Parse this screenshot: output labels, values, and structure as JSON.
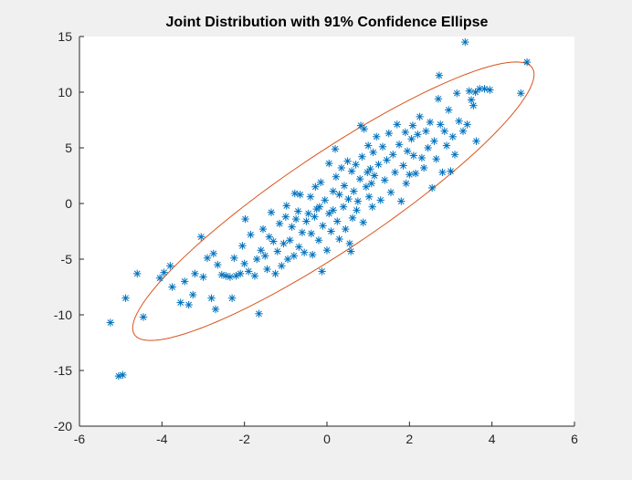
{
  "chart_data": {
    "type": "scatter",
    "title": "Joint Distribution with 91% Confidence Ellipse",
    "xlabel": "",
    "ylabel": "",
    "xlim": [
      -6,
      6
    ],
    "ylim": [
      -20,
      15
    ],
    "xticks": [
      "-6",
      "-4",
      "-2",
      "0",
      "2",
      "4",
      "6"
    ],
    "yticks": [
      "15",
      "10",
      "5",
      "0",
      "-5",
      "-10",
      "-15",
      "-20"
    ],
    "grid": false,
    "legend": "none",
    "colors": {
      "points": "#0072BD",
      "ellipse": "#D95319",
      "background": "#ffffff",
      "figure": "#f0f0f0"
    },
    "marker": "asterisk",
    "series": [
      {
        "points": [
          [
            -5.25,
            -10.7
          ],
          [
            -5.05,
            -15.5
          ],
          [
            -4.95,
            -15.4
          ],
          [
            -4.88,
            -8.5
          ],
          [
            -4.6,
            -6.3
          ],
          [
            -4.45,
            -10.2
          ],
          [
            -4.05,
            -6.7
          ],
          [
            -3.95,
            -6.2
          ],
          [
            -3.8,
            -5.6
          ],
          [
            -3.75,
            -7.5
          ],
          [
            -3.55,
            -8.9
          ],
          [
            -3.45,
            -7.0
          ],
          [
            -3.35,
            -9.1
          ],
          [
            -3.25,
            -8.2
          ],
          [
            -3.2,
            -6.3
          ],
          [
            -3.05,
            -3.0
          ],
          [
            -3.0,
            -6.6
          ],
          [
            -2.9,
            -4.9
          ],
          [
            -2.8,
            -8.5
          ],
          [
            -2.75,
            -4.5
          ],
          [
            -2.7,
            -9.5
          ],
          [
            -2.65,
            -5.5
          ],
          [
            -2.55,
            -6.4
          ],
          [
            -2.45,
            -6.5
          ],
          [
            -2.35,
            -6.6
          ],
          [
            -2.3,
            -8.5
          ],
          [
            -2.25,
            -4.9
          ],
          [
            -2.2,
            -6.5
          ],
          [
            -2.1,
            -6.3
          ],
          [
            -2.05,
            -3.8
          ],
          [
            -2.0,
            -5.4
          ],
          [
            -1.98,
            -1.4
          ],
          [
            -1.9,
            -6.1
          ],
          [
            -1.85,
            -2.8
          ],
          [
            -1.75,
            -6.5
          ],
          [
            -1.7,
            -5.0
          ],
          [
            -1.65,
            -9.9
          ],
          [
            -1.6,
            -4.2
          ],
          [
            -1.55,
            -2.3
          ],
          [
            -1.5,
            -4.7
          ],
          [
            -1.45,
            -5.9
          ],
          [
            -1.4,
            -3.0
          ],
          [
            -1.35,
            -0.8
          ],
          [
            -1.3,
            -3.4
          ],
          [
            -1.25,
            -6.3
          ],
          [
            -1.2,
            -4.3
          ],
          [
            -1.15,
            -1.8
          ],
          [
            -1.1,
            -5.6
          ],
          [
            -1.05,
            -3.6
          ],
          [
            -1.0,
            -1.2
          ],
          [
            -0.98,
            -0.2
          ],
          [
            -0.95,
            -5.0
          ],
          [
            -0.9,
            -3.3
          ],
          [
            -0.85,
            -2.1
          ],
          [
            -0.8,
            -4.7
          ],
          [
            -0.78,
            0.9
          ],
          [
            -0.75,
            -1.4
          ],
          [
            -0.7,
            -0.7
          ],
          [
            -0.68,
            -3.9
          ],
          [
            -0.65,
            0.8
          ],
          [
            -0.6,
            -2.6
          ],
          [
            -0.55,
            -4.4
          ],
          [
            -0.5,
            -1.6
          ],
          [
            -0.45,
            -0.9
          ],
          [
            -0.4,
            0.6
          ],
          [
            -0.38,
            -2.7
          ],
          [
            -0.35,
            -4.6
          ],
          [
            -0.3,
            -1.2
          ],
          [
            -0.28,
            1.5
          ],
          [
            -0.25,
            -0.5
          ],
          [
            -0.2,
            -3.3
          ],
          [
            -0.18,
            -0.3
          ],
          [
            -0.15,
            1.9
          ],
          [
            -0.12,
            -6.1
          ],
          [
            -0.1,
            -2.0
          ],
          [
            -0.05,
            0.3
          ],
          [
            0.0,
            -4.2
          ],
          [
            0.05,
            -0.9
          ],
          [
            0.05,
            3.6
          ],
          [
            0.1,
            -2.5
          ],
          [
            0.15,
            1.1
          ],
          [
            0.15,
            -0.6
          ],
          [
            0.2,
            4.9
          ],
          [
            0.22,
            2.4
          ],
          [
            0.25,
            -1.6
          ],
          [
            0.3,
            0.8
          ],
          [
            0.3,
            -3.2
          ],
          [
            0.35,
            3.2
          ],
          [
            0.4,
            -0.3
          ],
          [
            0.42,
            1.6
          ],
          [
            0.45,
            -2.3
          ],
          [
            0.5,
            3.8
          ],
          [
            0.52,
            0.4
          ],
          [
            0.55,
            -3.6
          ],
          [
            0.58,
            -4.3
          ],
          [
            0.6,
            2.9
          ],
          [
            0.62,
            -1.3
          ],
          [
            0.65,
            1.1
          ],
          [
            0.7,
            3.5
          ],
          [
            0.72,
            -0.6
          ],
          [
            0.75,
            0.2
          ],
          [
            0.8,
            2.2
          ],
          [
            0.82,
            7.0
          ],
          [
            0.85,
            4.2
          ],
          [
            0.88,
            -1.7
          ],
          [
            0.9,
            6.7
          ],
          [
            0.95,
            1.5
          ],
          [
            0.98,
            2.8
          ],
          [
            1.0,
            5.2
          ],
          [
            1.02,
            0.6
          ],
          [
            1.05,
            3.1
          ],
          [
            1.08,
            1.8
          ],
          [
            1.1,
            -0.3
          ],
          [
            1.12,
            4.6
          ],
          [
            1.15,
            2.5
          ],
          [
            1.2,
            6.0
          ],
          [
            1.25,
            3.5
          ],
          [
            1.3,
            0.3
          ],
          [
            1.35,
            5.1
          ],
          [
            1.4,
            2.1
          ],
          [
            1.45,
            3.9
          ],
          [
            1.5,
            6.3
          ],
          [
            1.55,
            1.0
          ],
          [
            1.6,
            4.4
          ],
          [
            1.65,
            2.8
          ],
          [
            1.7,
            7.1
          ],
          [
            1.75,
            5.3
          ],
          [
            1.8,
            0.2
          ],
          [
            1.85,
            3.4
          ],
          [
            1.9,
            6.4
          ],
          [
            1.92,
            1.8
          ],
          [
            1.95,
            4.7
          ],
          [
            2.0,
            2.6
          ],
          [
            2.05,
            5.8
          ],
          [
            2.08,
            7.0
          ],
          [
            2.1,
            4.3
          ],
          [
            2.15,
            2.7
          ],
          [
            2.2,
            6.2
          ],
          [
            2.25,
            7.8
          ],
          [
            2.3,
            4.1
          ],
          [
            2.35,
            3.2
          ],
          [
            2.4,
            6.5
          ],
          [
            2.45,
            5.0
          ],
          [
            2.5,
            7.3
          ],
          [
            2.55,
            1.4
          ],
          [
            2.6,
            5.6
          ],
          [
            2.65,
            4.0
          ],
          [
            2.7,
            9.4
          ],
          [
            2.72,
            11.5
          ],
          [
            2.75,
            7.1
          ],
          [
            2.8,
            2.8
          ],
          [
            2.85,
            6.5
          ],
          [
            2.9,
            5.2
          ],
          [
            2.95,
            8.4
          ],
          [
            3.0,
            2.9
          ],
          [
            3.05,
            6.0
          ],
          [
            3.1,
            4.4
          ],
          [
            3.15,
            9.9
          ],
          [
            3.2,
            7.4
          ],
          [
            3.3,
            6.5
          ],
          [
            3.35,
            14.5
          ],
          [
            3.4,
            7.1
          ],
          [
            3.45,
            10.1
          ],
          [
            3.5,
            9.3
          ],
          [
            3.55,
            8.8
          ],
          [
            3.6,
            10.0
          ],
          [
            3.62,
            5.6
          ],
          [
            3.7,
            10.3
          ],
          [
            3.82,
            10.3
          ],
          [
            3.95,
            10.2
          ],
          [
            4.7,
            9.9
          ],
          [
            4.85,
            12.7
          ]
        ]
      }
    ],
    "ellipse": {
      "center": [
        -0.29,
        -0.18
      ],
      "points": 120
    }
  }
}
